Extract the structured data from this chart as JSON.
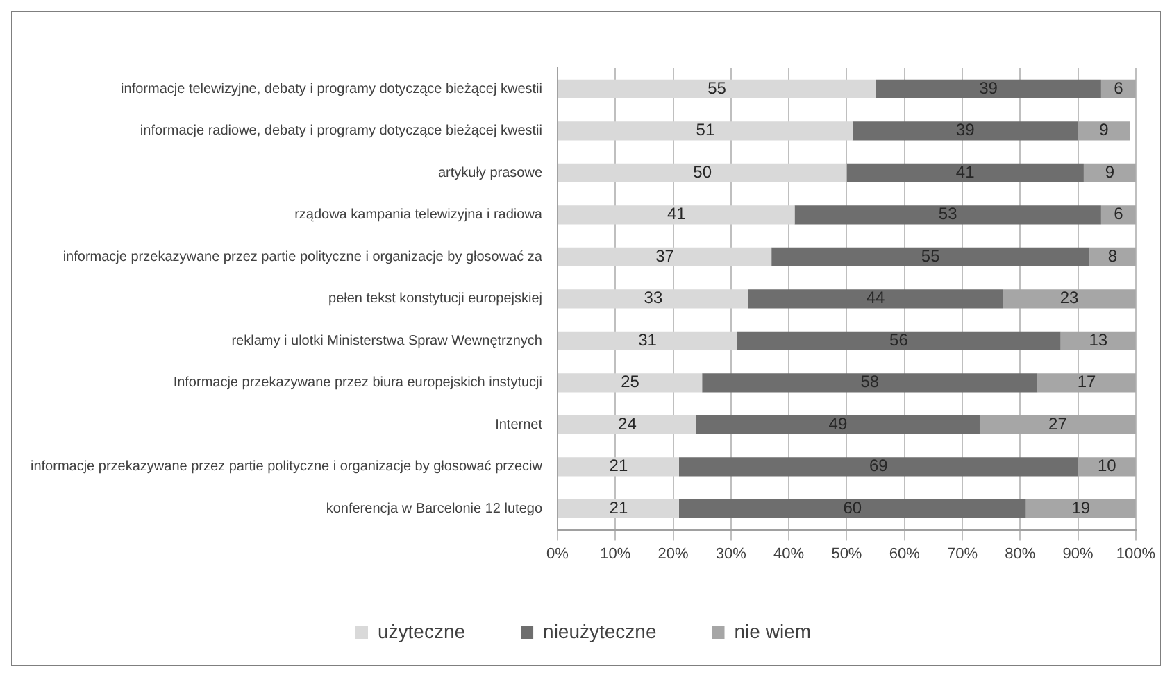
{
  "chart_data": {
    "type": "bar",
    "orientation": "horizontal",
    "stacked": true,
    "categories": [
      "informacje telewizyjne, debaty i programy dotyczące bieżącej kwestii",
      "informacje radiowe, debaty i programy dotyczące bieżącej kwestii",
      "artykuły prasowe",
      "rządowa kampania telewizyjna i radiowa",
      "informacje przekazywane przez partie polityczne i organizacje by głosować za",
      "pełen tekst konstytucji europejskiej",
      "reklamy i ulotki Ministerstwa Spraw Wewnętrznych",
      "Informacje przekazywane przez biura europejskich instytucji",
      "Internet",
      "informacje przekazywane przez partie polityczne i organizacje by głosować przeciw",
      "konferencja w Barcelonie 12 lutego"
    ],
    "series": [
      {
        "name": "użyteczne",
        "color": "#d9d9d9",
        "values": [
          55,
          51,
          50,
          41,
          37,
          33,
          31,
          25,
          24,
          21,
          21
        ]
      },
      {
        "name": "nieużyteczne",
        "color": "#6e6e6e",
        "values": [
          39,
          39,
          41,
          53,
          55,
          44,
          56,
          58,
          49,
          69,
          60
        ]
      },
      {
        "name": "nie wiem",
        "color": "#a6a6a6",
        "values": [
          6,
          9,
          9,
          6,
          8,
          23,
          13,
          17,
          27,
          10,
          19
        ]
      }
    ],
    "xlim": [
      0,
      100
    ],
    "xticks": [
      {
        "value": 0,
        "label": "0%"
      },
      {
        "value": 10,
        "label": "10%"
      },
      {
        "value": 20,
        "label": "20%"
      },
      {
        "value": 30,
        "label": "30%"
      },
      {
        "value": 40,
        "label": "40%"
      },
      {
        "value": 50,
        "label": "50%"
      },
      {
        "value": 60,
        "label": "60%"
      },
      {
        "value": 70,
        "label": "70%"
      },
      {
        "value": 80,
        "label": "80%"
      },
      {
        "value": 90,
        "label": "90%"
      },
      {
        "value": 100,
        "label": "100%"
      }
    ],
    "grid": "x",
    "legend": "bottom",
    "data_labels": true
  }
}
